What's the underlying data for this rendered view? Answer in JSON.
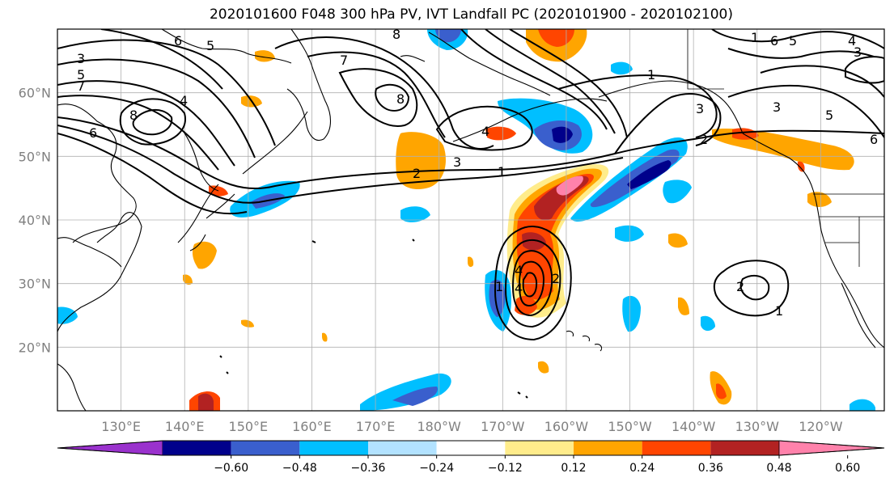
{
  "title": "2020101600 F048 300 hPa PV, IVT Landfall PC (2020101900 - 2020102100)",
  "map": {
    "lat_labels": [
      "60°N",
      "50°N",
      "40°N",
      "30°N",
      "20°N"
    ],
    "lat_values": [
      60,
      50,
      40,
      30,
      20
    ],
    "lon_labels": [
      "130°E",
      "140°E",
      "150°E",
      "160°E",
      "170°E",
      "180°W",
      "170°W",
      "160°W",
      "150°W",
      "140°W",
      "130°W",
      "120°W"
    ],
    "lon_values": [
      130,
      140,
      150,
      160,
      170,
      180,
      190,
      200,
      210,
      220,
      230,
      240
    ],
    "extent": {
      "lon_min": 120,
      "lon_max": 250,
      "lat_min": 10,
      "lat_max": 70
    },
    "grid": true,
    "field_shaded": "IVT Landfall PC",
    "field_contoured": "300 hPa PV",
    "pv_contour_labels": [
      "1",
      "2",
      "3",
      "4",
      "5",
      "6",
      "7",
      "8"
    ]
  },
  "colorbar": {
    "ticks": [
      "−0.60",
      "−0.48",
      "−0.36",
      "−0.24",
      "−0.12",
      "0.12",
      "0.24",
      "0.36",
      "0.48",
      "0.60"
    ],
    "colors": [
      "#9a32cd",
      "#00008b",
      "#3a5fcd",
      "#00bfff",
      "#b2e2ff",
      "#ffffff",
      "#ffec8b",
      "#ffa500",
      "#ff4500",
      "#b22222",
      "#ff82ab"
    ],
    "extend": "both"
  }
}
